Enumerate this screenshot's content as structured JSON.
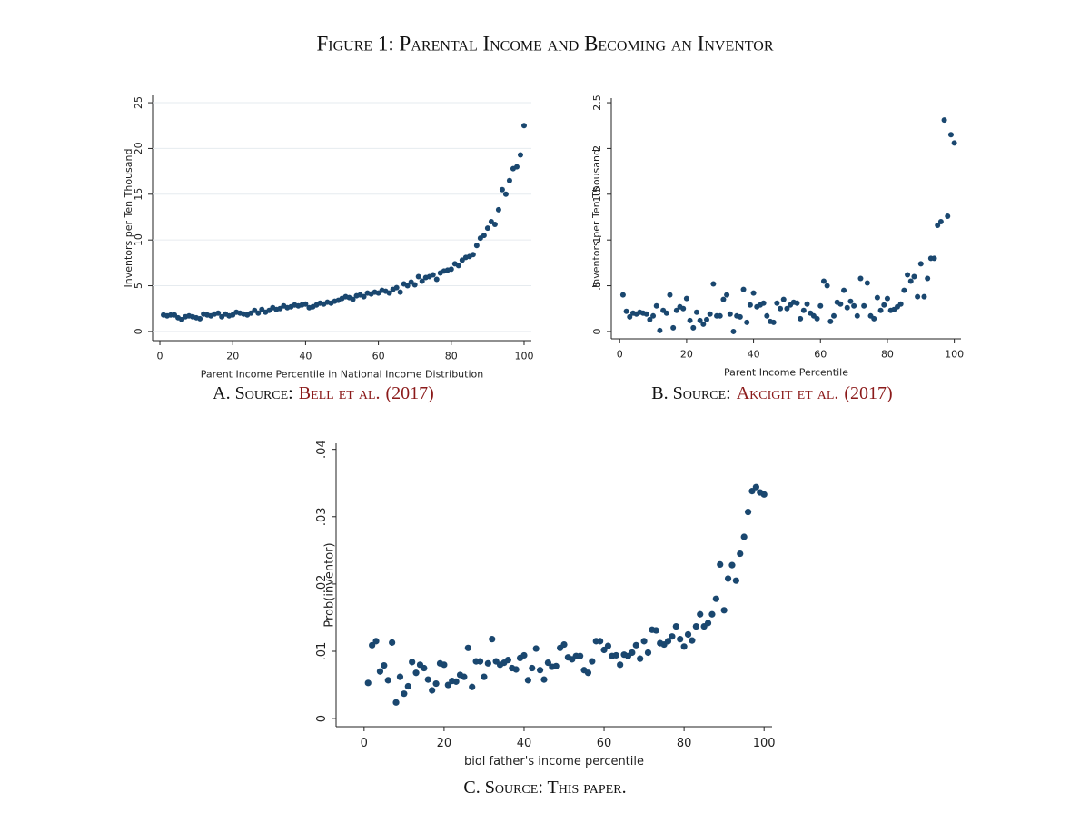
{
  "title": "Figure 1: Parental Income and Becoming an Inventor",
  "chart_data": [
    {
      "type": "scatter",
      "color": "#1a476f",
      "grid": true,
      "x_label": "Parent Income Percentile in National Income Distribution",
      "y_label": "Inventors per Ten Thousand",
      "caption": {
        "text": "A. Source:",
        "cite": "Bell et al.",
        "year": "(2017)"
      },
      "xlim": [
        -2,
        102
      ],
      "ylim": [
        -1,
        25.8
      ],
      "xticks": [
        0,
        20,
        40,
        60,
        80,
        100
      ],
      "yticks": [
        0,
        5,
        10,
        15,
        20,
        25
      ],
      "x": [
        1,
        2,
        3,
        4,
        5,
        6,
        7,
        8,
        9,
        10,
        11,
        12,
        13,
        14,
        15,
        16,
        17,
        18,
        19,
        20,
        21,
        22,
        23,
        24,
        25,
        26,
        27,
        28,
        29,
        30,
        31,
        32,
        33,
        34,
        35,
        36,
        37,
        38,
        39,
        40,
        41,
        42,
        43,
        44,
        45,
        46,
        47,
        48,
        49,
        50,
        51,
        52,
        53,
        54,
        55,
        56,
        57,
        58,
        59,
        60,
        61,
        62,
        63,
        64,
        65,
        66,
        67,
        68,
        69,
        70,
        71,
        72,
        73,
        74,
        75,
        76,
        77,
        78,
        79,
        80,
        81,
        82,
        83,
        84,
        85,
        86,
        87,
        88,
        89,
        90,
        91,
        92,
        93,
        94,
        95,
        96,
        97,
        98,
        99,
        100
      ],
      "values": [
        1.8,
        1.7,
        1.8,
        1.8,
        1.5,
        1.3,
        1.6,
        1.7,
        1.6,
        1.5,
        1.4,
        1.9,
        1.8,
        1.7,
        1.9,
        2.0,
        1.6,
        1.9,
        1.7,
        1.8,
        2.1,
        2.0,
        1.9,
        1.8,
        2.0,
        2.3,
        2.0,
        2.4,
        2.1,
        2.3,
        2.6,
        2.4,
        2.5,
        2.8,
        2.6,
        2.7,
        2.9,
        2.8,
        2.9,
        3.0,
        2.6,
        2.7,
        2.9,
        3.1,
        3.0,
        3.2,
        3.1,
        3.3,
        3.4,
        3.6,
        3.8,
        3.7,
        3.5,
        3.9,
        4.0,
        3.8,
        4.2,
        4.1,
        4.3,
        4.2,
        4.5,
        4.4,
        4.2,
        4.6,
        4.8,
        4.3,
        5.2,
        5.0,
        5.4,
        5.1,
        6.0,
        5.5,
        5.9,
        6.0,
        6.2,
        5.7,
        6.4,
        6.6,
        6.7,
        6.8,
        7.4,
        7.2,
        7.8,
        8.1,
        8.2,
        8.4,
        9.4,
        10.2,
        10.5,
        11.3,
        12.0,
        11.7,
        13.3,
        15.5,
        15.0,
        16.5,
        17.8,
        18.0,
        19.3,
        22.5
      ]
    },
    {
      "type": "scatter",
      "color": "#1a476f",
      "grid": false,
      "x_label": "Parent Income Percentile",
      "y_label": "Inventors per Ten Thousand",
      "caption": {
        "text": "B. Source:",
        "cite": "Akcigit et al.",
        "year": "(2017)"
      },
      "xlim": [
        -2.5,
        102
      ],
      "ylim": [
        -0.08,
        2.55
      ],
      "xticks": [
        0,
        20,
        40,
        60,
        80,
        100
      ],
      "yticks": [
        0,
        {
          "value": 0.5,
          "label": ".5"
        },
        1,
        1.5,
        2,
        2.5
      ],
      "x": [
        1,
        2,
        3,
        4,
        5,
        6,
        7,
        8,
        9,
        10,
        11,
        12,
        13,
        14,
        15,
        16,
        17,
        18,
        19,
        20,
        21,
        22,
        23,
        24,
        25,
        26,
        27,
        28,
        29,
        30,
        31,
        32,
        33,
        34,
        35,
        36,
        37,
        38,
        39,
        40,
        41,
        42,
        43,
        44,
        45,
        46,
        47,
        48,
        49,
        50,
        51,
        52,
        53,
        54,
        55,
        56,
        57,
        58,
        59,
        60,
        61,
        62,
        63,
        64,
        65,
        66,
        67,
        68,
        69,
        70,
        71,
        72,
        73,
        74,
        75,
        76,
        77,
        78,
        79,
        80,
        81,
        82,
        83,
        84,
        85,
        86,
        87,
        88,
        89,
        90,
        91,
        92,
        93,
        94,
        95,
        96,
        97,
        98,
        99,
        100
      ],
      "values": [
        0.4,
        0.22,
        0.16,
        0.2,
        0.19,
        0.21,
        0.2,
        0.19,
        0.13,
        0.17,
        0.28,
        0.01,
        0.23,
        0.2,
        0.4,
        0.04,
        0.23,
        0.27,
        0.25,
        0.36,
        0.12,
        0.04,
        0.21,
        0.12,
        0.08,
        0.13,
        0.19,
        0.52,
        0.17,
        0.17,
        0.35,
        0.4,
        0.19,
        0.0,
        0.17,
        0.16,
        0.46,
        0.1,
        0.29,
        0.42,
        0.27,
        0.29,
        0.31,
        0.17,
        0.11,
        0.1,
        0.31,
        0.25,
        0.35,
        0.25,
        0.29,
        0.32,
        0.31,
        0.14,
        0.23,
        0.3,
        0.2,
        0.17,
        0.14,
        0.28,
        0.55,
        0.5,
        0.11,
        0.17,
        0.32,
        0.3,
        0.45,
        0.26,
        0.33,
        0.28,
        0.17,
        0.58,
        0.28,
        0.53,
        0.17,
        0.14,
        0.37,
        0.23,
        0.29,
        0.36,
        0.23,
        0.24,
        0.27,
        0.3,
        0.45,
        0.62,
        0.55,
        0.6,
        0.38,
        0.74,
        0.38,
        0.58,
        0.8,
        0.8,
        1.16,
        1.2,
        2.31,
        1.26,
        2.15,
        2.06
      ]
    },
    {
      "type": "scatter",
      "color": "#1a476f",
      "grid": false,
      "x_label": "biol father's income percentile",
      "y_label": "Prob(inventor)",
      "caption": {
        "text": "C. Source: This paper."
      },
      "xlim": [
        -7,
        102
      ],
      "ylim": [
        -0.0012,
        0.0409
      ],
      "xticks": [
        0,
        20,
        40,
        60,
        80,
        100
      ],
      "yticks": [
        0,
        {
          "value": 0.01,
          "label": ".01"
        },
        {
          "value": 0.02,
          "label": ".02"
        },
        {
          "value": 0.03,
          "label": ".03"
        },
        {
          "value": 0.04,
          "label": ".04"
        }
      ],
      "x": [
        1,
        2,
        3,
        4,
        5,
        6,
        7,
        8,
        9,
        10,
        11,
        12,
        13,
        14,
        15,
        16,
        17,
        18,
        19,
        20,
        21,
        22,
        23,
        24,
        25,
        26,
        27,
        28,
        29,
        30,
        31,
        32,
        33,
        34,
        35,
        36,
        37,
        38,
        39,
        40,
        41,
        42,
        43,
        44,
        45,
        46,
        47,
        48,
        49,
        50,
        51,
        52,
        53,
        54,
        55,
        56,
        57,
        58,
        59,
        60,
        61,
        62,
        63,
        64,
        65,
        66,
        67,
        68,
        69,
        70,
        71,
        72,
        73,
        74,
        75,
        76,
        77,
        78,
        79,
        80,
        81,
        82,
        83,
        84,
        85,
        86,
        87,
        88,
        89,
        90,
        91,
        92,
        93,
        94,
        95,
        96,
        97,
        98,
        99,
        100
      ],
      "values": [
        0.0053,
        0.0109,
        0.0115,
        0.007,
        0.0079,
        0.0057,
        0.0113,
        0.0024,
        0.0062,
        0.0037,
        0.0048,
        0.0084,
        0.0068,
        0.008,
        0.0075,
        0.0058,
        0.0042,
        0.0052,
        0.0082,
        0.008,
        0.005,
        0.0056,
        0.0055,
        0.0065,
        0.0062,
        0.0105,
        0.0047,
        0.0085,
        0.0085,
        0.0062,
        0.0082,
        0.0118,
        0.0085,
        0.008,
        0.0083,
        0.0087,
        0.0075,
        0.0073,
        0.009,
        0.0094,
        0.0057,
        0.0075,
        0.0104,
        0.0072,
        0.0058,
        0.0083,
        0.0077,
        0.0078,
        0.0105,
        0.011,
        0.0091,
        0.0088,
        0.0093,
        0.0093,
        0.0072,
        0.0068,
        0.0085,
        0.0115,
        0.0115,
        0.0102,
        0.0108,
        0.0093,
        0.0094,
        0.008,
        0.0095,
        0.0093,
        0.0098,
        0.0109,
        0.0089,
        0.0115,
        0.0098,
        0.0132,
        0.0131,
        0.0112,
        0.011,
        0.0115,
        0.0122,
        0.0137,
        0.0118,
        0.0107,
        0.0125,
        0.0116,
        0.0137,
        0.0155,
        0.0137,
        0.0142,
        0.0155,
        0.0178,
        0.0229,
        0.0161,
        0.0208,
        0.0228,
        0.0205,
        0.0245,
        0.027,
        0.0307,
        0.0338,
        0.0344,
        0.0336,
        0.0333
      ]
    }
  ]
}
